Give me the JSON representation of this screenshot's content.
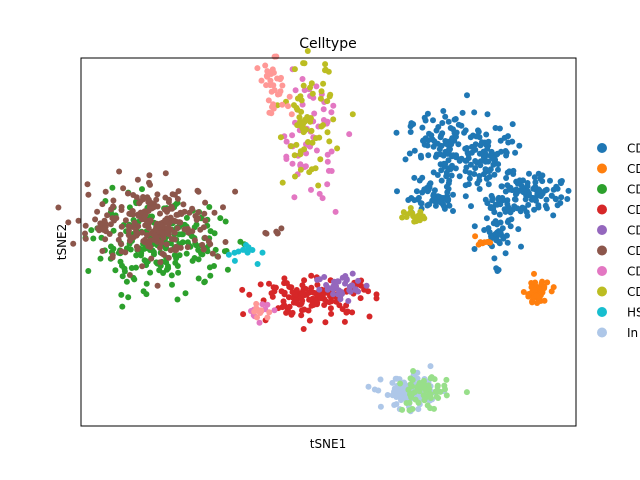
{
  "chart_data": {
    "type": "scatter",
    "title": "Celltype",
    "xlabel": "tSNE1",
    "ylabel": "tSNE2",
    "xlim": [
      0,
      100
    ],
    "ylim": [
      0,
      100
    ],
    "xticks": false,
    "yticks": false,
    "grid": false,
    "legend_position": "right, outside plot area (clipped by image edge)",
    "series": [
      {
        "name": "CD",
        "color": "#1f77b4",
        "clusters": [
          {
            "cx": 74,
            "cy": 75,
            "sx": 4.0,
            "sy": 5.0,
            "n": 120
          },
          {
            "cx": 83,
            "cy": 74,
            "sx": 3.0,
            "sy": 4.0,
            "n": 70
          },
          {
            "cx": 90,
            "cy": 63,
            "sx": 3.5,
            "sy": 3.0,
            "n": 110
          },
          {
            "cx": 71,
            "cy": 62,
            "sx": 3.0,
            "sy": 2.0,
            "n": 60
          },
          {
            "cx": 84,
            "cy": 54,
            "sx": 1.8,
            "sy": 4.5,
            "n": 50
          }
        ]
      },
      {
        "name": "CD",
        "color": "#ff7f0e",
        "clusters": [
          {
            "cx": 92,
            "cy": 36,
            "sx": 1.2,
            "sy": 1.8,
            "n": 55
          },
          {
            "cx": 81,
            "cy": 50,
            "sx": 1.5,
            "sy": 0.7,
            "n": 8
          }
        ]
      },
      {
        "name": "CD",
        "color": "#2ca02c",
        "clusters": [
          {
            "cx": 16,
            "cy": 49,
            "sx": 6.5,
            "sy": 5.5,
            "n": 220
          }
        ]
      },
      {
        "name": "CD",
        "color": "#d62728",
        "clusters": [
          {
            "cx": 47,
            "cy": 35,
            "sx": 6.0,
            "sy": 2.6,
            "n": 140
          }
        ]
      },
      {
        "name": "CD",
        "color": "#9467bd",
        "clusters": [
          {
            "cx": 53,
            "cy": 38,
            "sx": 2.8,
            "sy": 2.0,
            "n": 40
          }
        ]
      },
      {
        "name": "CD",
        "color": "#8c564b",
        "clusters": [
          {
            "cx": 15,
            "cy": 55,
            "sx": 6.5,
            "sy": 5.0,
            "n": 230
          },
          {
            "cx": 39,
            "cy": 52,
            "sx": 0.8,
            "sy": 0.8,
            "n": 6
          }
        ]
      },
      {
        "name": "CD",
        "color": "#e377c2",
        "clusters": [
          {
            "cx": 46,
            "cy": 80,
            "sx": 3.0,
            "sy": 9.0,
            "n": 60
          },
          {
            "cx": 36,
            "cy": 31,
            "sx": 1.5,
            "sy": 1.2,
            "n": 12
          }
        ]
      },
      {
        "name": "CD",
        "color": "#bcbd22",
        "clusters": [
          {
            "cx": 46,
            "cy": 82,
            "sx": 2.5,
            "sy": 8.0,
            "n": 70
          },
          {
            "cx": 67,
            "cy": 57,
            "sx": 1.3,
            "sy": 0.8,
            "n": 18
          }
        ]
      },
      {
        "name": "HS",
        "color": "#17becf",
        "clusters": [
          {
            "cx": 34,
            "cy": 47,
            "sx": 3.0,
            "sy": 2.0,
            "n": 12
          }
        ]
      },
      {
        "name": "In",
        "color": "#aec7e8",
        "clusters": [
          {
            "cx": 67,
            "cy": 9,
            "sx": 3.0,
            "sy": 2.2,
            "n": 110
          }
        ]
      },
      {
        "name": "",
        "color": "#98df8a",
        "clusters": [
          {
            "cx": 69,
            "cy": 9,
            "sx": 2.5,
            "sy": 2.5,
            "n": 60
          }
        ]
      },
      {
        "name": "",
        "color": "#ff9896",
        "clusters": [
          {
            "cx": 39,
            "cy": 92,
            "sx": 1.5,
            "sy": 3.5,
            "n": 35
          },
          {
            "cx": 36,
            "cy": 31,
            "sx": 1.3,
            "sy": 1.0,
            "n": 10
          }
        ]
      }
    ]
  }
}
